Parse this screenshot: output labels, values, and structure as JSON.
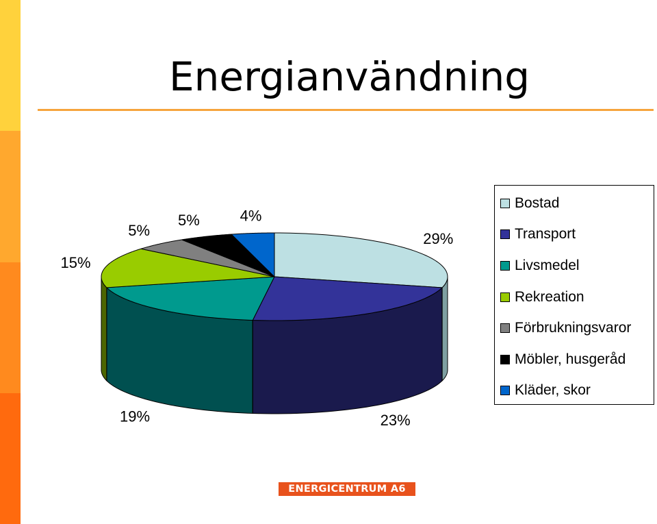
{
  "slide": {
    "title": "Energianvändning",
    "brand_logo_text": "ENERGICENTRUM A6",
    "side_bar_colors": [
      "#ffd23c",
      "#ffa82e",
      "#ff8a1e",
      "#ff6a0e"
    ],
    "title_rule_color": "#f6a43c"
  },
  "chart_data": {
    "type": "pie",
    "style": "3d",
    "legend_position": "right",
    "categories": [
      "Bostad",
      "Transport",
      "Livsmedel",
      "Rekreation",
      "Förbrukningsvaror",
      "Möbler, husgeråd",
      "Kläder, skor"
    ],
    "values": [
      29,
      23,
      19,
      15,
      5,
      5,
      4
    ],
    "value_labels": [
      "29%",
      "23%",
      "19%",
      "15%",
      "5%",
      "5%",
      "4%"
    ],
    "colors": [
      "#bde0e3",
      "#333399",
      "#009a8e",
      "#99cc00",
      "#808080",
      "#000000",
      "#0066cc"
    ],
    "side_colors": [
      "#7fa0a2",
      "#1a1a4d",
      "#005050",
      "#4d6600",
      "#404040",
      "#000000",
      "#003366"
    ]
  }
}
